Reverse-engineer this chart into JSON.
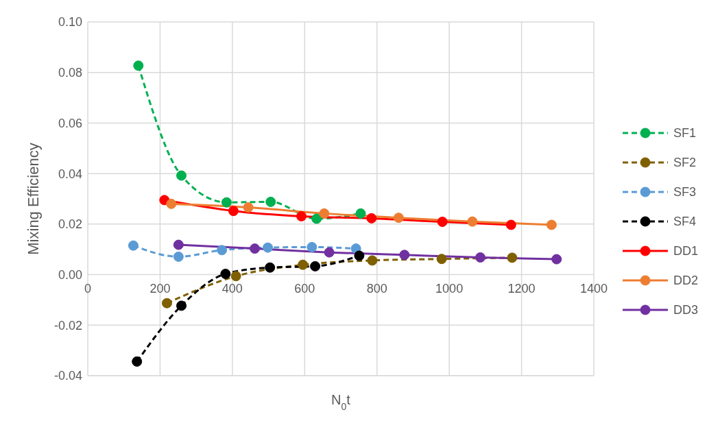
{
  "chart_data": {
    "type": "line",
    "xlabel": "N$_{0}$t",
    "ylabel": "Mixing Efficiency",
    "xlim": [
      0,
      1400
    ],
    "xticks": [
      0,
      200,
      400,
      600,
      800,
      1000,
      1200,
      1400
    ],
    "ylim": [
      -0.04,
      0.1
    ],
    "yticks": [
      {
        "value": -0.04,
        "label": "-0.04"
      },
      {
        "value": -0.02,
        "label": "-0.02"
      },
      {
        "value": 0,
        "label": "0.00"
      },
      {
        "value": 0.02,
        "label": "0.02"
      },
      {
        "value": 0.04,
        "label": "0.04"
      },
      {
        "value": 0.06,
        "label": "0.06"
      },
      {
        "value": 0.08,
        "label": "0.08"
      },
      {
        "value": 0.1,
        "label": "0.10"
      }
    ],
    "grid": true,
    "legend": "right",
    "marker": "circle",
    "series": [
      {
        "name": "SF1",
        "color": "#00b050",
        "line_style": "dashed",
        "x": [
          140,
          259,
          384,
          506,
          633,
          755
        ],
        "values": [
          0.0827,
          0.0392,
          0.0286,
          0.0288,
          0.0221,
          0.0242
        ]
      },
      {
        "name": "SF2",
        "color": "#7f6000",
        "line_style": "dashed",
        "x": [
          219,
          410,
          595,
          787,
          979,
          1174
        ],
        "values": [
          -0.0113,
          -0.0006,
          0.0039,
          0.0056,
          0.0062,
          0.0067
        ]
      },
      {
        "name": "SF3",
        "color": "#5b9bd5",
        "line_style": "dashed",
        "x": [
          126,
          251,
          371,
          498,
          620,
          742
        ],
        "values": [
          0.0115,
          0.0071,
          0.0097,
          0.0107,
          0.0109,
          0.0103
        ]
      },
      {
        "name": "SF4",
        "color": "#000000",
        "line_style": "dashed",
        "x": [
          136,
          259,
          381,
          504,
          629,
          751
        ],
        "values": [
          -0.0344,
          -0.0123,
          0.0003,
          0.0028,
          0.0033,
          0.0075
        ]
      },
      {
        "name": "DD1",
        "color": "#ff0000",
        "line_style": "solid",
        "x": [
          212,
          403,
          591,
          785,
          981,
          1171
        ],
        "values": [
          0.0295,
          0.0252,
          0.0231,
          0.0223,
          0.0209,
          0.0197
        ]
      },
      {
        "name": "DD2",
        "color": "#ed7d31",
        "line_style": "solid",
        "x": [
          231,
          444,
          654,
          860,
          1064,
          1283
        ],
        "values": [
          0.028,
          0.0266,
          0.0242,
          0.0225,
          0.021,
          0.0197
        ]
      },
      {
        "name": "DD3",
        "color": "#7030a0",
        "line_style": "solid",
        "x": [
          251,
          462,
          668,
          876,
          1086,
          1297
        ],
        "values": [
          0.0118,
          0.0103,
          0.0088,
          0.0078,
          0.0068,
          0.0061
        ]
      }
    ]
  }
}
